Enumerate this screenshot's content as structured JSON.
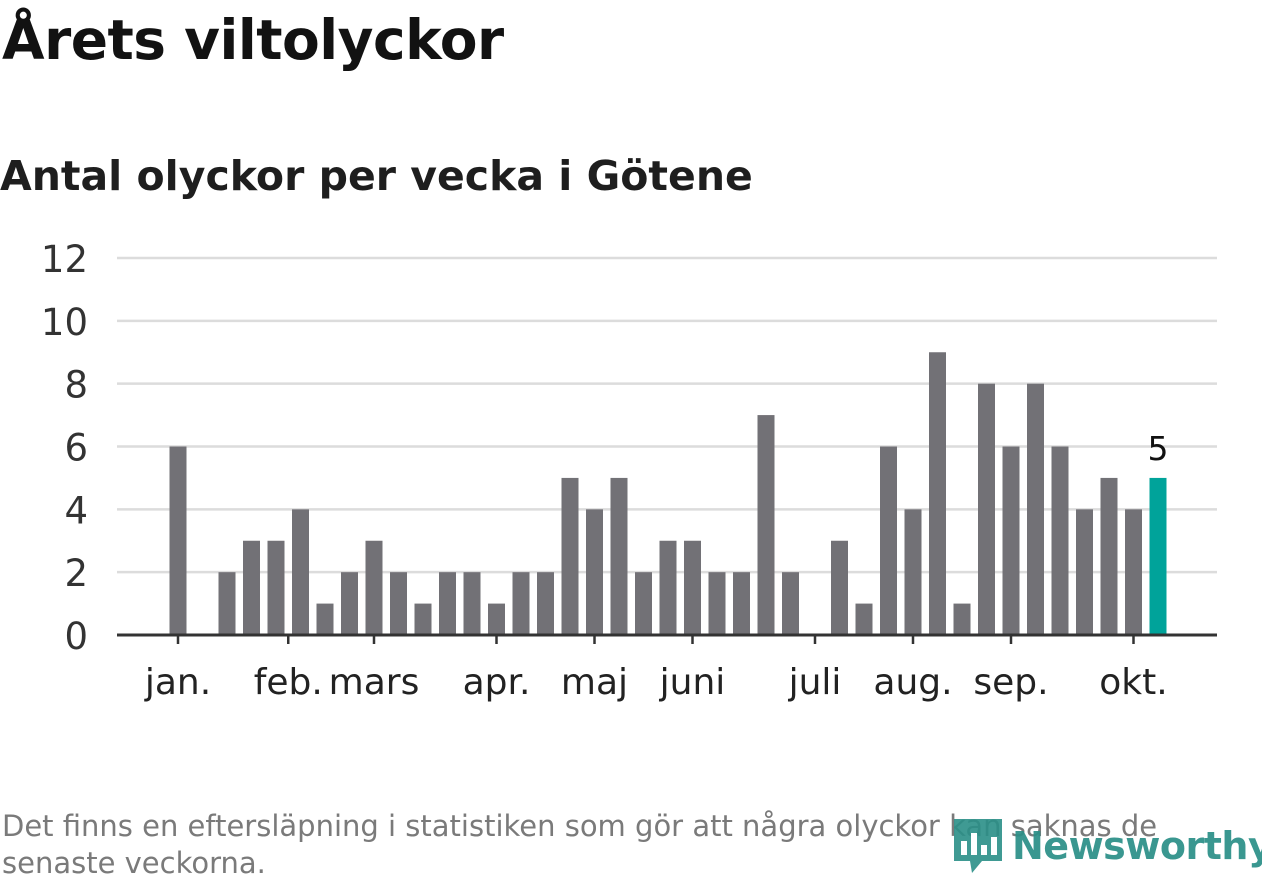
{
  "title": "Årets viltolyckor",
  "subtitle": "Antal olyckor per vecka i Götene",
  "footnote": "Det finns en eftersläpning i statistiken som gör att några olyckor kan saknas de senaste veckorna.",
  "logo": {
    "text": "Newsworthy"
  },
  "colors": {
    "bar": "#727176",
    "highlight": "#00a39a",
    "grid": "#dcdcdc",
    "axis": "#333333",
    "logo": "#2a8f87"
  },
  "chart_data": {
    "type": "bar",
    "title": "Antal olyckor per vecka i Götene",
    "xlabel": "",
    "ylabel": "",
    "ylim": [
      0,
      12
    ],
    "yticks": [
      0,
      2,
      4,
      6,
      8,
      10,
      12
    ],
    "grid": true,
    "series": [
      {
        "name": "Antal olyckor",
        "weeks": [
          1,
          2,
          3,
          4,
          5,
          6,
          7,
          8,
          9,
          10,
          11,
          12,
          13,
          14,
          15,
          16,
          17,
          18,
          19,
          20,
          21,
          22,
          23,
          24,
          25,
          26,
          27,
          28,
          29,
          30,
          31,
          32,
          33,
          34,
          35,
          36,
          37,
          38,
          39,
          40,
          41
        ],
        "values": [
          6,
          0,
          2,
          3,
          3,
          4,
          1,
          2,
          3,
          2,
          1,
          2,
          2,
          1,
          2,
          2,
          5,
          4,
          5,
          2,
          3,
          3,
          2,
          2,
          7,
          2,
          0,
          3,
          1,
          6,
          4,
          9,
          1,
          8,
          6,
          8,
          6,
          4,
          5,
          4,
          5
        ]
      }
    ],
    "highlight": {
      "week": 41,
      "label": "5"
    },
    "month_labels": [
      {
        "label": "jan.",
        "week": 1
      },
      {
        "label": "feb.",
        "week": 5.5
      },
      {
        "label": "mars",
        "week": 9
      },
      {
        "label": "apr.",
        "week": 14
      },
      {
        "label": "maj",
        "week": 18
      },
      {
        "label": "juni",
        "week": 22
      },
      {
        "label": "juli",
        "week": 27
      },
      {
        "label": "aug.",
        "week": 31
      },
      {
        "label": "sep.",
        "week": 35
      },
      {
        "label": "okt.",
        "week": 40
      }
    ]
  }
}
